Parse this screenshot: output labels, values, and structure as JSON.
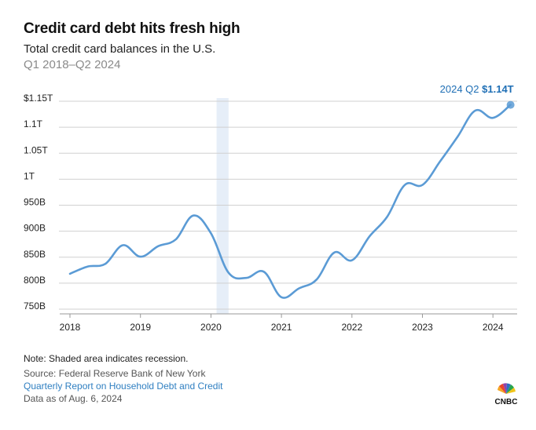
{
  "header": {
    "title": "Credit card debt hits fresh high",
    "subtitle": "Total credit card balances in the U.S.",
    "period": "Q1 2018–Q2 2024"
  },
  "chart_data": {
    "type": "line",
    "title": "Credit card debt hits fresh high",
    "xlabel": "",
    "ylabel": "",
    "x_unit": "year",
    "ylim_billions": [
      745,
      1150
    ],
    "y_ticks": [
      {
        "value": 1150,
        "label": "$1.15T"
      },
      {
        "value": 1100,
        "label": "1.1T"
      },
      {
        "value": 1050,
        "label": "1.05T"
      },
      {
        "value": 1000,
        "label": "1T"
      },
      {
        "value": 950,
        "label": "950B"
      },
      {
        "value": 900,
        "label": "900B"
      },
      {
        "value": 850,
        "label": "850B"
      },
      {
        "value": 800,
        "label": "800B"
      },
      {
        "value": 750,
        "label": "750B"
      }
    ],
    "x_ticks": [
      "2018",
      "2019",
      "2020",
      "2021",
      "2022",
      "2023",
      "2024"
    ],
    "recession": {
      "start": 2020.08,
      "end": 2020.25
    },
    "series": [
      {
        "name": "Total credit card balances",
        "color": "#5b9bd5",
        "points": [
          [
            2018.0,
            815
          ],
          [
            2018.25,
            829
          ],
          [
            2018.5,
            834
          ],
          [
            2018.75,
            870
          ],
          [
            2019.0,
            848
          ],
          [
            2019.25,
            868
          ],
          [
            2019.5,
            881
          ],
          [
            2019.75,
            927
          ],
          [
            2020.0,
            893
          ],
          [
            2020.25,
            817
          ],
          [
            2020.5,
            807
          ],
          [
            2020.75,
            819
          ],
          [
            2021.0,
            770
          ],
          [
            2021.25,
            787
          ],
          [
            2021.5,
            804
          ],
          [
            2021.75,
            856
          ],
          [
            2022.0,
            841
          ],
          [
            2022.25,
            887
          ],
          [
            2022.5,
            925
          ],
          [
            2022.75,
            986
          ],
          [
            2023.0,
            986
          ],
          [
            2023.25,
            1031
          ],
          [
            2023.5,
            1079
          ],
          [
            2023.75,
            1129
          ],
          [
            2024.0,
            1115
          ],
          [
            2024.25,
            1140
          ]
        ]
      }
    ],
    "annotation": {
      "prefix": "2024 Q2",
      "value": "$1.14T"
    }
  },
  "footer": {
    "note": "Note: Shaded area indicates recession.",
    "source": "Source: Federal Reserve Bank of New York",
    "report_link": "Quarterly Report on Household Debt and Credit",
    "as_of": "Data as of Aug. 6, 2024",
    "logo_text": "CNBC"
  },
  "colors": {
    "line": "#5b9bd5",
    "recession": "#e6eef8",
    "grid": "#d0d0d0",
    "accent": "#1f6fb5"
  }
}
